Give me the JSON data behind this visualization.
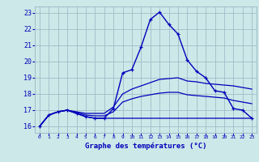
{
  "title": "Graphe des températures (°C)",
  "bg_color": "#cce8e8",
  "grid_color": "#a0bcc8",
  "line_color": "#0000bb",
  "xlim": [
    -0.5,
    23.5
  ],
  "ylim": [
    15.6,
    23.4
  ],
  "yticks": [
    16,
    17,
    18,
    19,
    20,
    21,
    22,
    23
  ],
  "xticks": [
    0,
    1,
    2,
    3,
    4,
    5,
    6,
    7,
    8,
    9,
    10,
    11,
    12,
    13,
    14,
    15,
    16,
    17,
    18,
    19,
    20,
    21,
    22,
    23
  ],
  "series": {
    "main": [
      16.0,
      16.7,
      16.9,
      17.0,
      16.8,
      16.6,
      16.5,
      16.5,
      17.1,
      19.3,
      19.5,
      20.9,
      22.6,
      23.05,
      22.3,
      21.7,
      20.1,
      19.4,
      19.0,
      18.2,
      18.1,
      17.1,
      17.0,
      16.5
    ],
    "max_line": [
      16.0,
      16.7,
      16.9,
      17.0,
      16.9,
      16.8,
      16.8,
      16.8,
      17.2,
      18.0,
      18.3,
      18.5,
      18.7,
      18.9,
      18.95,
      19.0,
      18.8,
      18.75,
      18.65,
      18.6,
      18.55,
      18.5,
      18.4,
      18.3
    ],
    "mid_line": [
      16.0,
      16.7,
      16.9,
      17.0,
      16.85,
      16.7,
      16.65,
      16.65,
      16.9,
      17.5,
      17.7,
      17.85,
      17.95,
      18.05,
      18.1,
      18.1,
      17.95,
      17.9,
      17.85,
      17.8,
      17.75,
      17.6,
      17.5,
      17.4
    ],
    "min_line": [
      16.0,
      16.7,
      16.9,
      17.0,
      16.8,
      16.6,
      16.5,
      16.5,
      16.5,
      16.5,
      16.5,
      16.5,
      16.5,
      16.5,
      16.5,
      16.5,
      16.5,
      16.5,
      16.5,
      16.5,
      16.5,
      16.5,
      16.5,
      16.5
    ]
  }
}
